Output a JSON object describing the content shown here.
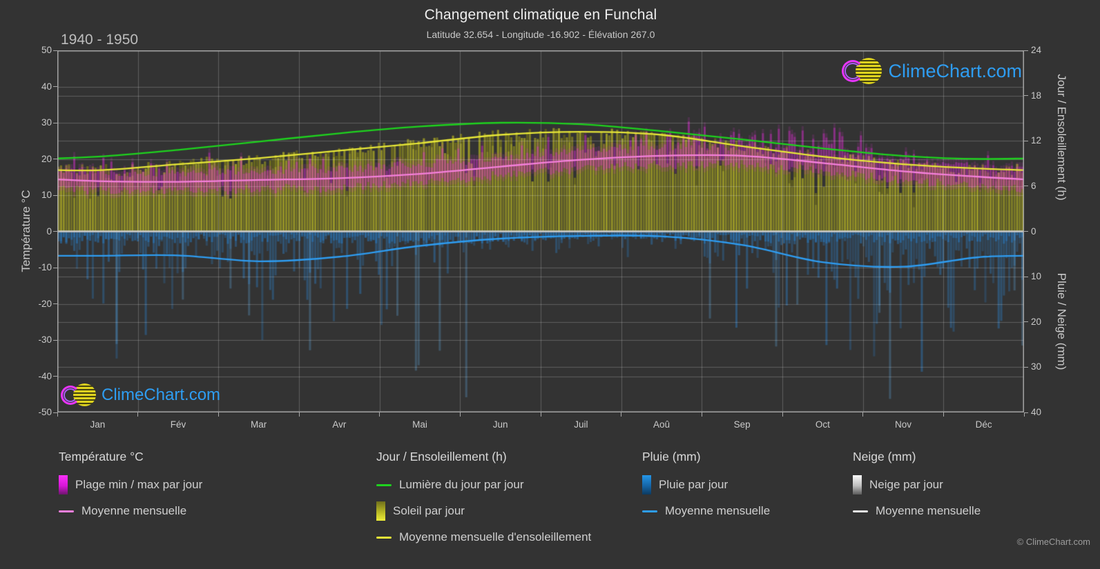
{
  "header": {
    "title": "Changement climatique en Funchal",
    "subtitle": "Latitude 32.654 - Longitude -16.902 - Élévation 267.0",
    "period": "1940 - 1950"
  },
  "watermark": {
    "text": "ClimeChart.com"
  },
  "copyright": "© ClimeChart.com",
  "axes": {
    "left_title": "Température °C",
    "right_top_title": "Jour / Ensoleillement (h)",
    "right_bottom_title": "Pluie / Neige (mm)",
    "temp_ticks": [
      50,
      40,
      30,
      20,
      10,
      0,
      -10,
      -20,
      -30,
      -40,
      -50
    ],
    "sun_ticks": [
      24,
      18,
      12,
      6,
      0
    ],
    "rain_ticks": [
      10,
      20,
      30,
      40
    ],
    "months": [
      "Jan",
      "Fév",
      "Mar",
      "Avr",
      "Mai",
      "Jun",
      "Juil",
      "Aoû",
      "Sep",
      "Oct",
      "Nov",
      "Déc"
    ]
  },
  "legend": {
    "columns": [
      {
        "title": "Température °C",
        "items": [
          {
            "swatch": "gradient-magenta",
            "label": "Plage min / max par jour"
          },
          {
            "swatch": "line-pink",
            "label": "Moyenne mensuelle"
          }
        ]
      },
      {
        "title": "Jour / Ensoleillement (h)",
        "items": [
          {
            "swatch": "line-green",
            "label": "Lumière du jour par jour"
          },
          {
            "swatch": "gradient-yellow",
            "label": "Soleil par jour"
          },
          {
            "swatch": "line-yellow",
            "label": "Moyenne mensuelle d'ensoleillement"
          }
        ]
      },
      {
        "title": "Pluie (mm)",
        "items": [
          {
            "swatch": "gradient-blue",
            "label": "Pluie par jour"
          },
          {
            "swatch": "line-blue",
            "label": "Moyenne mensuelle"
          }
        ]
      },
      {
        "title": "Neige (mm)",
        "items": [
          {
            "swatch": "gradient-snow",
            "label": "Neige par jour"
          },
          {
            "swatch": "line-white",
            "label": "Moyenne mensuelle"
          }
        ]
      }
    ]
  },
  "colors": {
    "background": "#333333",
    "grid": "rgba(255,255,255,0.22)",
    "zero_line": "#cfcfcf",
    "border": "#aaaaaa",
    "daylight_green": "#1ed31e",
    "sun_yellow_line": "#e8e838",
    "sun_fill_olive": "#8f8f25",
    "temp_mean_pink": "#f580dc",
    "temp_band_magenta": "#e12dd7",
    "rain_line_blue": "#2e9df2",
    "rain_fill_blue": "#2676bc",
    "snow_white": "#e8e8e8",
    "logo_blue": "#2e9df2",
    "logo_magenta": "#e935ff"
  },
  "chart_data": {
    "type": "area",
    "title": "Changement climatique en Funchal",
    "subtitle": "Latitude 32.654 - Longitude -16.902 - Élévation 267.0",
    "period": "1940 - 1950",
    "categories": [
      "Jan",
      "Fév",
      "Mar",
      "Avr",
      "Mai",
      "Jun",
      "Juil",
      "Aoû",
      "Sep",
      "Oct",
      "Nov",
      "Déc"
    ],
    "axis_ranges": {
      "temperature_c": [
        -50,
        50
      ],
      "sun_hours": [
        0,
        24
      ],
      "rain_snow_mm": [
        0,
        40
      ],
      "rain_axis_inverted_below_zero": true
    },
    "grid": true,
    "legend_position": "bottom",
    "series": [
      {
        "name": "Lumière du jour par jour",
        "unit": "h",
        "style": "line",
        "color": "#1ed31e",
        "values": [
          9.9,
          10.8,
          11.9,
          13.0,
          13.9,
          14.4,
          14.2,
          13.3,
          12.2,
          11.0,
          10.0,
          9.6
        ]
      },
      {
        "name": "Moyenne mensuelle d'ensoleillement",
        "unit": "h",
        "style": "line",
        "color": "#e8e838",
        "values": [
          8.1,
          8.9,
          9.7,
          10.7,
          11.7,
          12.8,
          13.2,
          12.8,
          11.3,
          9.9,
          8.9,
          8.3
        ]
      },
      {
        "name": "Température moyenne mensuelle",
        "unit": "°C",
        "style": "line",
        "color": "#f580dc",
        "values": [
          13.9,
          13.7,
          14.2,
          14.7,
          15.9,
          17.9,
          19.8,
          20.9,
          20.9,
          18.9,
          16.6,
          15.0
        ]
      },
      {
        "name": "Température min par jour (bas de plage)",
        "unit": "°C",
        "style": "band-low",
        "color": "#e12dd7",
        "values": [
          11.5,
          11.3,
          11.8,
          12.3,
          13.6,
          15.6,
          17.5,
          18.6,
          18.6,
          16.6,
          14.3,
          12.6
        ]
      },
      {
        "name": "Température max par jour (haut de plage)",
        "unit": "°C",
        "style": "band-high",
        "color": "#e12dd7",
        "values": [
          16.3,
          16.1,
          16.6,
          17.1,
          18.3,
          20.3,
          22.2,
          23.3,
          23.4,
          21.3,
          19.0,
          17.4
        ]
      },
      {
        "name": "Pluie moyenne mensuelle",
        "unit": "mm",
        "style": "line",
        "color": "#2e9df2",
        "values": [
          5.4,
          5.3,
          6.6,
          5.6,
          3.2,
          1.6,
          1.0,
          1.1,
          3.0,
          6.8,
          7.8,
          5.6
        ]
      },
      {
        "name": "Neige moyenne mensuelle",
        "unit": "mm",
        "style": "line",
        "color": "#e8e8e8",
        "values": [
          0,
          0,
          0,
          0,
          0,
          0,
          0,
          0,
          0,
          0,
          0,
          0
        ]
      }
    ]
  }
}
